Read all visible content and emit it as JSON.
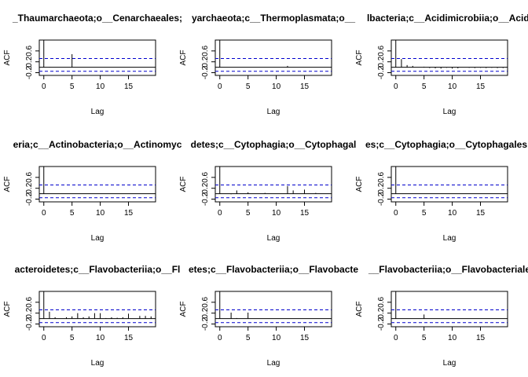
{
  "figure": {
    "background": "#ffffff",
    "ci_color": "#0000cc",
    "bar_color": "#000000"
  },
  "chart_data": [
    {
      "type": "bar",
      "title": "_Thaumarchaeota;o__Cenarchaeales;",
      "xlabel": "Lag",
      "ylabel": "ACF",
      "xlim": [
        -0.8,
        19.8
      ],
      "ylim": [
        -0.3,
        1.0
      ],
      "xticks": [
        "0",
        "5",
        "10",
        "15"
      ],
      "yticks": [
        "-0.2",
        "0.2",
        "0.6"
      ],
      "ci": [
        0.32,
        -0.15
      ],
      "lags": [
        0,
        1,
        2,
        3,
        4,
        5,
        6,
        7,
        8,
        9,
        10,
        11,
        12,
        13,
        14,
        15,
        16,
        17,
        18,
        19
      ],
      "values": [
        1.0,
        0.01,
        0.0,
        0.0,
        0.0,
        0.48,
        0.0,
        0.0,
        0.0,
        0.0,
        0.0,
        0.0,
        0.0,
        0.0,
        0.0,
        0.0,
        0.0,
        0.0,
        0.0,
        0.0
      ]
    },
    {
      "type": "bar",
      "title": "yarchaeota;c__Thermoplasmata;o__",
      "xlabel": "Lag",
      "ylabel": "ACF",
      "xlim": [
        -0.8,
        19.8
      ],
      "ylim": [
        -0.3,
        1.0
      ],
      "xticks": [
        "0",
        "5",
        "10",
        "15"
      ],
      "yticks": [
        "-0.2",
        "0.2",
        "0.6"
      ],
      "ci": [
        0.32,
        -0.15
      ],
      "lags": [
        0,
        1,
        2,
        3,
        4,
        5,
        6,
        7,
        8,
        9,
        10,
        11,
        12,
        13,
        14,
        15,
        16,
        17,
        18,
        19
      ],
      "values": [
        1.0,
        0.0,
        0.0,
        0.0,
        0.0,
        0.0,
        0.0,
        0.0,
        0.0,
        0.0,
        0.0,
        0.0,
        0.05,
        0.0,
        0.0,
        0.0,
        0.0,
        0.0,
        0.0,
        0.0
      ]
    },
    {
      "type": "bar",
      "title": "lbacteria;c__Acidimicrobiia;o__Acidi",
      "xlabel": "Lag",
      "ylabel": "ACF",
      "xlim": [
        -0.8,
        19.8
      ],
      "ylim": [
        -0.3,
        1.0
      ],
      "xticks": [
        "0",
        "5",
        "10",
        "15"
      ],
      "yticks": [
        "-0.2",
        "0.2",
        "0.6"
      ],
      "ci": [
        0.32,
        -0.15
      ],
      "lags": [
        0,
        1,
        2,
        3,
        4,
        5,
        6,
        7,
        8,
        9,
        10,
        11,
        12,
        13,
        14,
        15,
        16,
        17,
        18,
        19
      ],
      "values": [
        1.0,
        0.3,
        0.08,
        0.05,
        0.0,
        0.02,
        -0.03,
        -0.04,
        -0.05,
        -0.02,
        -0.05,
        -0.04,
        0.0,
        -0.02,
        -0.03,
        -0.02,
        -0.03,
        -0.02,
        -0.03,
        -0.03
      ]
    },
    {
      "type": "bar",
      "title": "eria;c__Actinobacteria;o__Actinomyc",
      "xlabel": "Lag",
      "ylabel": "ACF",
      "xlim": [
        -0.8,
        19.8
      ],
      "ylim": [
        -0.3,
        1.0
      ],
      "xticks": [
        "0",
        "5",
        "10",
        "15"
      ],
      "yticks": [
        "-0.2",
        "0.2",
        "0.6"
      ],
      "ci": [
        0.32,
        -0.15
      ],
      "lags": [
        0,
        1,
        2,
        3,
        4,
        5,
        6,
        7,
        8,
        9,
        10,
        11,
        12,
        13,
        14,
        15,
        16,
        17,
        18,
        19
      ],
      "values": [
        1.0,
        0.0,
        0.0,
        0.0,
        0.0,
        0.0,
        0.0,
        0.0,
        0.0,
        0.0,
        0.0,
        0.0,
        0.0,
        0.0,
        0.0,
        0.0,
        0.0,
        0.0,
        0.0,
        0.0
      ]
    },
    {
      "type": "bar",
      "title": "detes;c__Cytophagia;o__Cytophagal",
      "xlabel": "Lag",
      "ylabel": "ACF",
      "xlim": [
        -0.8,
        19.8
      ],
      "ylim": [
        -0.3,
        1.0
      ],
      "xticks": [
        "0",
        "5",
        "10",
        "15"
      ],
      "yticks": [
        "-0.2",
        "0.2",
        "0.6"
      ],
      "ci": [
        0.32,
        -0.15
      ],
      "lags": [
        0,
        1,
        2,
        3,
        4,
        5,
        6,
        7,
        8,
        9,
        10,
        11,
        12,
        13,
        14,
        15,
        16,
        17,
        18,
        19
      ],
      "values": [
        1.0,
        0.0,
        -0.02,
        0.12,
        0.0,
        0.05,
        0.0,
        0.0,
        0.03,
        0.0,
        0.0,
        0.0,
        0.28,
        0.12,
        0.0,
        0.15,
        0.0,
        0.03,
        0.0,
        0.0
      ]
    },
    {
      "type": "bar",
      "title": "es;c__Cytophagia;o__Cytophagales;f",
      "xlabel": "Lag",
      "ylabel": "ACF",
      "xlim": [
        -0.8,
        19.8
      ],
      "ylim": [
        -0.3,
        1.0
      ],
      "xticks": [
        "0",
        "5",
        "10",
        "15"
      ],
      "yticks": [
        "-0.2",
        "0.2",
        "0.6"
      ],
      "ci": [
        0.32,
        -0.15
      ],
      "lags": [
        0,
        1,
        2,
        3,
        4,
        5,
        6,
        7,
        8,
        9,
        10,
        11,
        12,
        13,
        14,
        15,
        16,
        17,
        18,
        19
      ],
      "values": [
        1.0,
        0.0,
        0.0,
        0.0,
        0.0,
        0.0,
        0.0,
        0.0,
        0.0,
        0.0,
        0.0,
        0.0,
        0.0,
        0.0,
        0.0,
        0.0,
        0.0,
        0.0,
        0.0,
        0.0
      ]
    },
    {
      "type": "bar",
      "title": "acteroidetes;c__Flavobacteriia;o__Fl",
      "xlabel": "Lag",
      "ylabel": "ACF",
      "xlim": [
        -0.8,
        19.8
      ],
      "ylim": [
        -0.3,
        1.0
      ],
      "xticks": [
        "0",
        "5",
        "10",
        "15"
      ],
      "yticks": [
        "-0.2",
        "0.2",
        "0.6"
      ],
      "ci": [
        0.32,
        -0.15
      ],
      "lags": [
        0,
        1,
        2,
        3,
        4,
        5,
        6,
        7,
        8,
        9,
        10,
        11,
        12,
        13,
        14,
        15,
        16,
        17,
        18,
        19
      ],
      "values": [
        1.0,
        0.25,
        0.05,
        0.0,
        0.05,
        0.08,
        0.2,
        0.05,
        0.08,
        0.2,
        0.2,
        0.02,
        0.05,
        0.03,
        0.05,
        0.18,
        0.0,
        0.1,
        0.1,
        0.08
      ]
    },
    {
      "type": "bar",
      "title": "etes;c__Flavobacteriia;o__Flavobacte",
      "xlabel": "Lag",
      "ylabel": "ACF",
      "xlim": [
        -0.8,
        19.8
      ],
      "ylim": [
        -0.3,
        1.0
      ],
      "xticks": [
        "0",
        "5",
        "10",
        "15"
      ],
      "yticks": [
        "-0.2",
        "0.2",
        "0.6"
      ],
      "ci": [
        0.32,
        -0.15
      ],
      "lags": [
        0,
        1,
        2,
        3,
        4,
        5,
        6,
        7,
        8,
        9,
        10,
        11,
        12,
        13,
        14,
        15,
        16,
        17,
        18,
        19
      ],
      "values": [
        1.0,
        0.0,
        0.22,
        0.02,
        0.0,
        0.22,
        0.0,
        0.0,
        0.0,
        0.0,
        0.0,
        0.0,
        0.0,
        0.0,
        0.0,
        0.0,
        0.0,
        0.0,
        0.0,
        0.0
      ]
    },
    {
      "type": "bar",
      "title": "__Flavobacteriia;o__Flavobacteriale",
      "xlabel": "Lag",
      "ylabel": "ACF",
      "xlim": [
        -0.8,
        19.8
      ],
      "ylim": [
        -0.3,
        1.0
      ],
      "xticks": [
        "0",
        "5",
        "10",
        "15"
      ],
      "yticks": [
        "-0.2",
        "0.2",
        "0.6"
      ],
      "ci": [
        0.32,
        -0.15
      ],
      "lags": [
        0,
        1,
        2,
        3,
        4,
        5,
        6,
        7,
        8,
        9,
        10,
        11,
        12,
        13,
        14,
        15,
        16,
        17,
        18,
        19
      ],
      "values": [
        1.0,
        0.0,
        0.0,
        0.0,
        0.0,
        0.15,
        0.0,
        0.0,
        0.0,
        0.0,
        0.0,
        0.0,
        0.0,
        0.0,
        0.0,
        0.0,
        0.0,
        0.0,
        0.0,
        0.0
      ]
    }
  ]
}
